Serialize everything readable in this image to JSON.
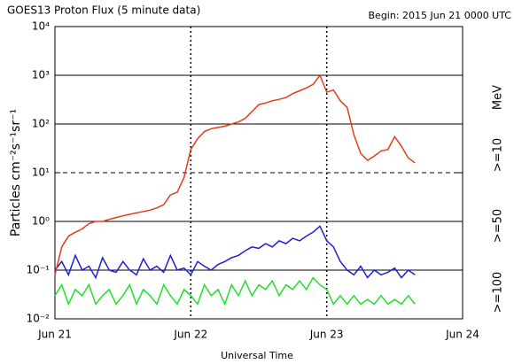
{
  "chart_data": {
    "type": "line",
    "title": "GOES13 Proton Flux (5 minute data)",
    "subtitle": "Begin: 2015 Jun 21 0000 UTC",
    "x_label": "Universal Time",
    "y_label": "Particles cm⁻²s⁻¹sr⁻¹",
    "legend_title": "MeV",
    "legend_position": "right",
    "log_y": true,
    "grid": true,
    "xlim": [
      0,
      3
    ],
    "xticks": [
      {
        "value": 0,
        "label": "Jun 21"
      },
      {
        "value": 1,
        "label": "Jun 22"
      },
      {
        "value": 2,
        "label": "Jun 23"
      },
      {
        "value": 3,
        "label": "Jun 24"
      }
    ],
    "ylim": [
      0.01,
      10000
    ],
    "yticks": [
      {
        "value": 0.01,
        "label": "10⁻²"
      },
      {
        "value": 0.1,
        "label": "10⁻¹"
      },
      {
        "value": 1,
        "label": "10⁰"
      },
      {
        "value": 10,
        "label": "10¹"
      },
      {
        "value": 100,
        "label": "10²"
      },
      {
        "value": 1000,
        "label": "10³"
      },
      {
        "value": 10000,
        "label": "10⁴"
      }
    ],
    "x": [
      0,
      0.05,
      0.1,
      0.15,
      0.2,
      0.25,
      0.3,
      0.35,
      0.4,
      0.45,
      0.5,
      0.55,
      0.6,
      0.65,
      0.7,
      0.75,
      0.8,
      0.85,
      0.9,
      0.95,
      1.0,
      1.05,
      1.1,
      1.15,
      1.2,
      1.25,
      1.3,
      1.35,
      1.4,
      1.45,
      1.5,
      1.55,
      1.6,
      1.65,
      1.7,
      1.75,
      1.8,
      1.85,
      1.9,
      1.95,
      2.0,
      2.05,
      2.1,
      2.15,
      2.2,
      2.25,
      2.3,
      2.35,
      2.4,
      2.45,
      2.5,
      2.55,
      2.6,
      2.65
    ],
    "series": [
      {
        "name": ">=10",
        "color": "#e8391c",
        "values": [
          0.08,
          0.3,
          0.5,
          0.6,
          0.7,
          0.9,
          1.0,
          1.0,
          1.1,
          1.2,
          1.3,
          1.4,
          1.5,
          1.6,
          1.7,
          1.9,
          2.2,
          3.5,
          4,
          8,
          30,
          50,
          70,
          80,
          85,
          90,
          100,
          110,
          130,
          180,
          250,
          270,
          300,
          320,
          350,
          420,
          480,
          550,
          650,
          1000,
          450,
          500,
          300,
          220,
          60,
          25,
          18,
          22,
          28,
          30,
          55,
          35,
          20,
          16
        ]
      },
      {
        "name": ">=50",
        "color": "#1f1fd6",
        "values": [
          0.1,
          0.15,
          0.08,
          0.2,
          0.1,
          0.12,
          0.07,
          0.18,
          0.1,
          0.09,
          0.15,
          0.1,
          0.08,
          0.17,
          0.1,
          0.12,
          0.09,
          0.2,
          0.1,
          0.11,
          0.08,
          0.15,
          0.12,
          0.1,
          0.13,
          0.15,
          0.18,
          0.2,
          0.25,
          0.3,
          0.28,
          0.35,
          0.3,
          0.4,
          0.35,
          0.45,
          0.4,
          0.5,
          0.6,
          0.8,
          0.4,
          0.3,
          0.15,
          0.1,
          0.08,
          0.12,
          0.07,
          0.1,
          0.08,
          0.09,
          0.11,
          0.07,
          0.1,
          0.08
        ]
      },
      {
        "name": ">=100",
        "color": "#22e02a",
        "values": [
          0.03,
          0.05,
          0.02,
          0.04,
          0.03,
          0.05,
          0.02,
          0.03,
          0.04,
          0.02,
          0.03,
          0.05,
          0.02,
          0.04,
          0.03,
          0.02,
          0.05,
          0.03,
          0.02,
          0.04,
          0.03,
          0.02,
          0.05,
          0.03,
          0.04,
          0.02,
          0.05,
          0.03,
          0.06,
          0.03,
          0.05,
          0.04,
          0.06,
          0.03,
          0.05,
          0.04,
          0.06,
          0.04,
          0.07,
          0.05,
          0.04,
          0.02,
          0.03,
          0.02,
          0.03,
          0.02,
          0.025,
          0.02,
          0.03,
          0.02,
          0.025,
          0.02,
          0.03,
          0.02
        ]
      }
    ]
  }
}
